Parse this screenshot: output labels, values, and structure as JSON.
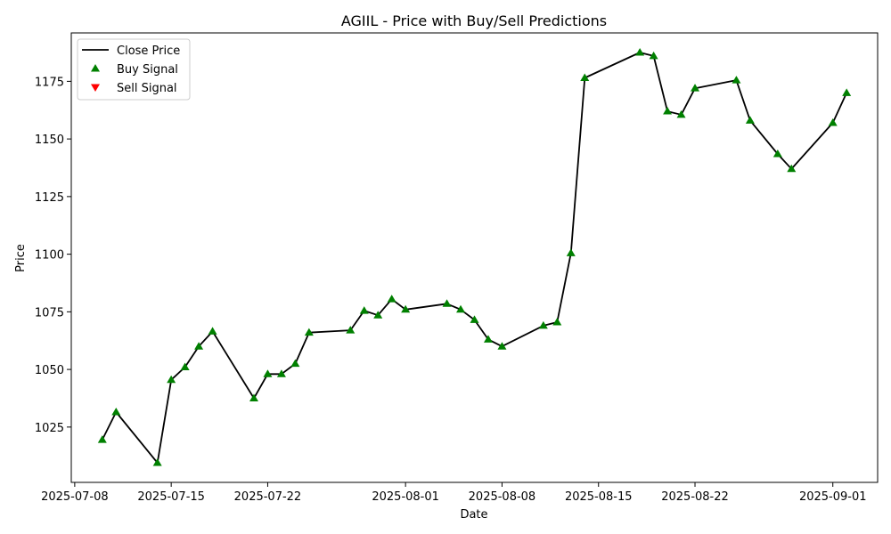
{
  "chart_data": {
    "type": "line",
    "title": "AGIIL - Price with Buy/Sell Predictions",
    "xlabel": "Date",
    "ylabel": "Price",
    "xlim": [
      "2025-07-07T18:00",
      "2025-09-04T06:00"
    ],
    "ylim": [
      1001,
      1196
    ],
    "x_ticks": [
      "2025-07-08",
      "2025-07-15",
      "2025-07-22",
      "2025-08-01",
      "2025-08-08",
      "2025-08-15",
      "2025-08-22",
      "2025-09-01"
    ],
    "y_ticks": [
      1025,
      1050,
      1075,
      1100,
      1125,
      1150,
      1175
    ],
    "grid": false,
    "legend_position": "top-left",
    "legend": [
      "Close Price",
      "Buy Signal",
      "Sell Signal"
    ],
    "colors": {
      "line": "#000000",
      "buy": "#008000",
      "sell": "#ff0000"
    },
    "series": [
      {
        "name": "Close Price",
        "kind": "line",
        "x": [
          "2025-07-10",
          "2025-07-11",
          "2025-07-14",
          "2025-07-15",
          "2025-07-16",
          "2025-07-17",
          "2025-07-18",
          "2025-07-21",
          "2025-07-22",
          "2025-07-23",
          "2025-07-24",
          "2025-07-25",
          "2025-07-28",
          "2025-07-29",
          "2025-07-30",
          "2025-07-31",
          "2025-08-01",
          "2025-08-04",
          "2025-08-05",
          "2025-08-06",
          "2025-08-07",
          "2025-08-08",
          "2025-08-11",
          "2025-08-12",
          "2025-08-13",
          "2025-08-14",
          "2025-08-18",
          "2025-08-19",
          "2025-08-20",
          "2025-08-21",
          "2025-08-22",
          "2025-08-25",
          "2025-08-26",
          "2025-08-28",
          "2025-08-29",
          "2025-09-01",
          "2025-09-02"
        ],
        "y": [
          1019.5,
          1031.5,
          1009.5,
          1045.5,
          1051,
          1060,
          1066.5,
          1037.5,
          1048,
          1048,
          1052.5,
          1066,
          1067,
          1075.5,
          1073.5,
          1080.5,
          1076,
          1078.5,
          1076,
          1071.5,
          1063,
          1060,
          1069,
          1070.5,
          1100.5,
          1176.5,
          1187.5,
          1186,
          1162,
          1160.5,
          1172,
          1175.5,
          1158,
          1143.5,
          1137,
          1157,
          1170
        ]
      },
      {
        "name": "Buy Signal",
        "kind": "scatter",
        "marker": "triangle-up",
        "x": [
          "2025-07-10",
          "2025-07-11",
          "2025-07-14",
          "2025-07-15",
          "2025-07-16",
          "2025-07-17",
          "2025-07-18",
          "2025-07-21",
          "2025-07-22",
          "2025-07-23",
          "2025-07-24",
          "2025-07-25",
          "2025-07-28",
          "2025-07-29",
          "2025-07-30",
          "2025-07-31",
          "2025-08-01",
          "2025-08-04",
          "2025-08-05",
          "2025-08-06",
          "2025-08-07",
          "2025-08-08",
          "2025-08-11",
          "2025-08-12",
          "2025-08-13",
          "2025-08-14",
          "2025-08-18",
          "2025-08-19",
          "2025-08-20",
          "2025-08-21",
          "2025-08-22",
          "2025-08-25",
          "2025-08-26",
          "2025-08-28",
          "2025-08-29",
          "2025-09-01",
          "2025-09-02"
        ],
        "y": [
          1019.5,
          1031.5,
          1009.5,
          1045.5,
          1051,
          1060,
          1066.5,
          1037.5,
          1048,
          1048,
          1052.5,
          1066,
          1067,
          1075.5,
          1073.5,
          1080.5,
          1076,
          1078.5,
          1076,
          1071.5,
          1063,
          1060,
          1069,
          1070.5,
          1100.5,
          1176.5,
          1187.5,
          1186,
          1162,
          1160.5,
          1172,
          1175.5,
          1158,
          1143.5,
          1137,
          1157,
          1170
        ]
      },
      {
        "name": "Sell Signal",
        "kind": "scatter",
        "marker": "triangle-down",
        "x": [],
        "y": []
      }
    ]
  }
}
